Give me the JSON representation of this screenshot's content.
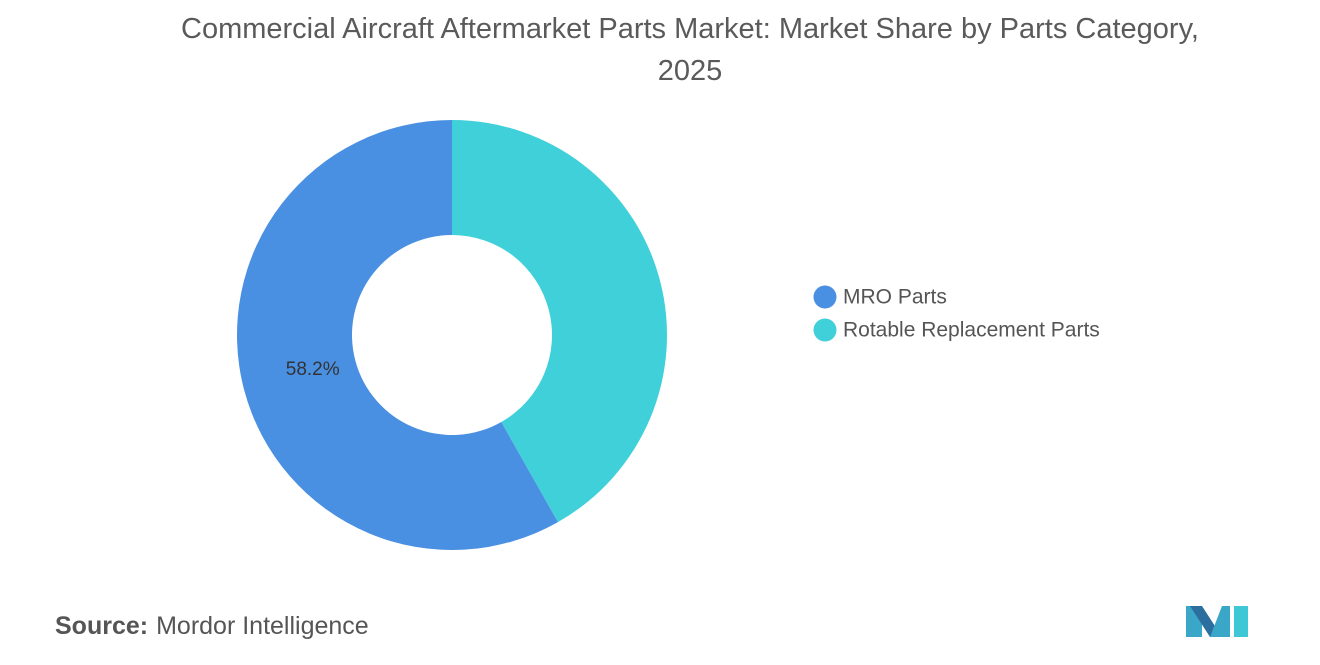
{
  "chart_data": {
    "type": "donut",
    "title": "Commercial Aircraft Aftermarket Parts Market: Market Share by Parts Category, 2025",
    "categories": [
      "MRO Parts",
      "Rotable Replacement Parts"
    ],
    "values": [
      58.2,
      41.8
    ],
    "value_labels": [
      "58.2%",
      null
    ],
    "colors": [
      "#4a90e2",
      "#40d0da"
    ],
    "legend": "right"
  },
  "source": {
    "label": "Source:",
    "text": "Mordor Intelligence"
  }
}
